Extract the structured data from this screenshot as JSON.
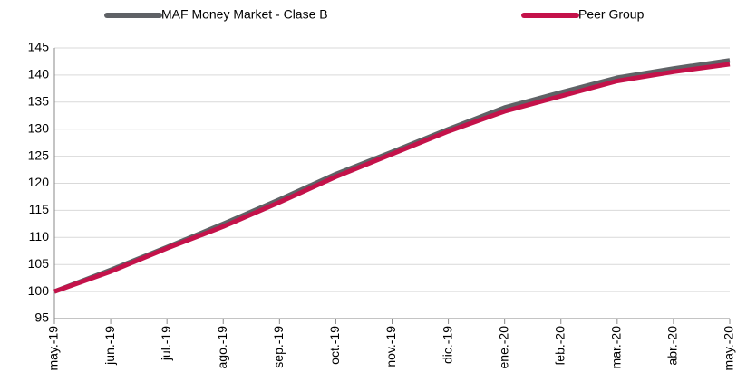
{
  "chart_data": {
    "type": "line",
    "categories": [
      "may.-19",
      "jun.-19",
      "jul.-19",
      "ago.-19",
      "sep.-19",
      "oct.-19",
      "nov.-19",
      "dic.-19",
      "ene.-20",
      "feb.-20",
      "mar.-20",
      "abr.-20",
      "may.-20"
    ],
    "series": [
      {
        "name": "MAF Money Market - Clase B",
        "color": "#5f6266",
        "values": [
          100,
          104,
          108.2,
          112.5,
          117,
          121.7,
          125.8,
          130,
          134,
          136.8,
          139.5,
          141.2,
          142.7
        ]
      },
      {
        "name": "Peer Group",
        "color": "#c4124a",
        "values": [
          100,
          103.7,
          108,
          112,
          116.5,
          121.2,
          125.4,
          129.6,
          133.3,
          136.1,
          138.9,
          140.6,
          142
        ]
      }
    ],
    "ylim": [
      95,
      145
    ],
    "yticks": [
      95,
      100,
      105,
      110,
      115,
      120,
      125,
      130,
      135,
      140,
      145
    ],
    "grid": true
  }
}
